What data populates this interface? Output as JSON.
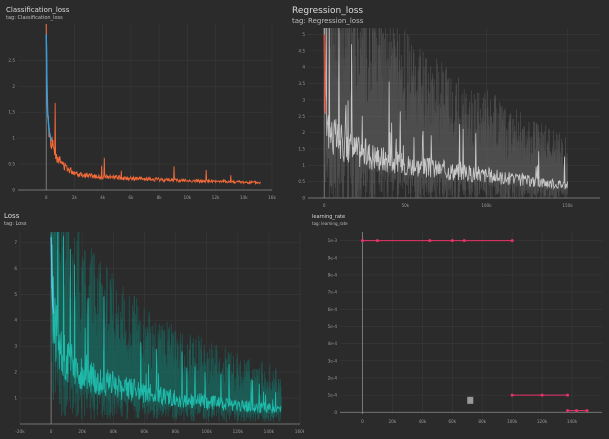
{
  "chart_data": [
    {
      "type": "line",
      "title": "Classification_loss",
      "subtitle": "tag: Classification_loss",
      "xlim": [
        -2,
        16
      ],
      "ylim": [
        0,
        3.2
      ],
      "x_ticks": [
        "0",
        "2k",
        "4k",
        "6k",
        "8k",
        "10k",
        "12k",
        "14k",
        "16k"
      ],
      "y_ticks": [
        "0",
        "0.5",
        "1",
        "1.5",
        "2",
        "2.5"
      ],
      "colors": {
        "early": "#2f9fe0",
        "main": "#ff6e3a"
      },
      "series": [
        {
          "x": [
            0,
            0.05,
            0.1,
            0.2,
            0.35,
            0.5,
            0.8,
            1.2,
            1.6,
            2,
            2.5,
            3,
            4,
            5,
            6,
            7,
            8,
            9,
            10,
            11,
            12,
            13,
            14,
            15.2
          ],
          "y": [
            3.0,
            2.1,
            1.5,
            1.15,
            0.95,
            0.82,
            0.62,
            0.48,
            0.4,
            0.34,
            0.3,
            0.28,
            0.25,
            0.24,
            0.22,
            0.21,
            0.2,
            0.19,
            0.18,
            0.17,
            0.17,
            0.16,
            0.15,
            0.14
          ]
        }
      ]
    },
    {
      "type": "line",
      "title": "Regression_loss",
      "subtitle": "tag: Regression_loss",
      "xlim": [
        -10,
        170
      ],
      "ylim": [
        0,
        5.2
      ],
      "x_ticks": [
        "0",
        "50k",
        "100k",
        "150k"
      ],
      "y_ticks": [
        "0",
        "0.5",
        "1",
        "1.5",
        "2",
        "2.5",
        "3",
        "3.5",
        "4",
        "4.5",
        "5"
      ],
      "colors": {
        "early": "#e8402a",
        "main": "#cfcfcf"
      },
      "series": [
        {
          "x": [
            0,
            0.5,
            1,
            2,
            3,
            5,
            10,
            20,
            30,
            40,
            50,
            60,
            70,
            80,
            90,
            100,
            110,
            120,
            130,
            140,
            150
          ],
          "y": [
            5.0,
            3.2,
            2.6,
            2.3,
            2.1,
            1.9,
            1.7,
            1.45,
            1.3,
            1.15,
            1.05,
            0.95,
            0.88,
            0.82,
            0.75,
            0.7,
            0.62,
            0.55,
            0.5,
            0.45,
            0.4
          ]
        }
      ]
    },
    {
      "type": "line",
      "title": "Loss",
      "subtitle": "tag: Loss",
      "xlim": [
        -20,
        160
      ],
      "ylim": [
        0,
        7.4
      ],
      "x_ticks": [
        "-20k",
        "0",
        "20k",
        "40k",
        "60k",
        "80k",
        "100k",
        "120k",
        "140k",
        "160k"
      ],
      "y_ticks": [
        "1",
        "2",
        "3",
        "4",
        "5",
        "6",
        "7"
      ],
      "colors": {
        "main": "#1fbfae",
        "early": "#5bc8e8"
      },
      "series": [
        {
          "x": [
            0,
            1,
            2,
            4,
            6,
            10,
            15,
            20,
            30,
            40,
            50,
            60,
            70,
            80,
            90,
            100,
            110,
            120,
            130,
            140,
            148
          ],
          "y": [
            7.2,
            4.6,
            3.9,
            3.3,
            2.9,
            2.5,
            2.2,
            1.95,
            1.7,
            1.5,
            1.35,
            1.22,
            1.1,
            1.0,
            0.92,
            0.85,
            0.78,
            0.7,
            0.65,
            0.6,
            0.55
          ]
        }
      ]
    },
    {
      "type": "scatter",
      "title": "learning_rate",
      "subtitle": "tag: learning_rate",
      "xlim": [
        -15,
        160
      ],
      "ylim": [
        -0.1,
        10.5
      ],
      "x_ticks": [
        "0",
        "20k",
        "40k",
        "60k",
        "80k",
        "100k",
        "120k",
        "140k"
      ],
      "y_ticks": [
        "0",
        "1e-4",
        "2e-4",
        "3e-4",
        "4e-4",
        "5e-4",
        "6e-4",
        "7e-4",
        "8e-4",
        "9e-4",
        "1e-3"
      ],
      "colors": {
        "main": "#e8336a",
        "marker": "#9a9a9a"
      },
      "series": [
        {
          "segments": [
            {
              "x": [
                0,
                10,
                45,
                60,
                68,
                100
              ],
              "y": [
                10,
                10,
                10,
                10,
                10,
                10
              ]
            },
            {
              "x": [
                100,
                120,
                137
              ],
              "y": [
                1,
                1,
                1
              ]
            },
            {
              "x": [
                137,
                143,
                150
              ],
              "y": [
                0.1,
                0.1,
                0.1
              ]
            }
          ]
        }
      ]
    }
  ]
}
